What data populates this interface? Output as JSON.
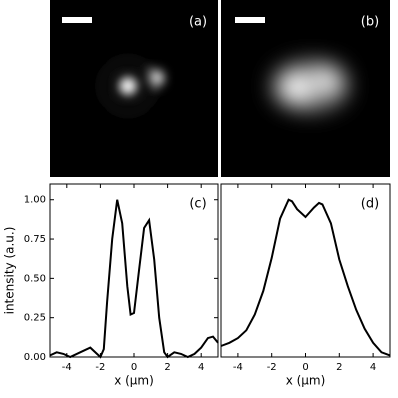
{
  "chart_data": [
    {
      "type": "image",
      "title": "(a)"
    },
    {
      "type": "image",
      "title": "(b)"
    },
    {
      "type": "line",
      "title": "(c)",
      "xlabel": "x (μm)",
      "ylabel": "intensity (a.u.)",
      "color": "#000000",
      "x": [
        -5,
        -4.6,
        -4.2,
        -3.8,
        -3.2,
        -2.6,
        -2.2,
        -2.0,
        -1.8,
        -1.6,
        -1.3,
        -1.0,
        -0.7,
        -0.4,
        -0.2,
        0,
        0.3,
        0.6,
        0.9,
        1.2,
        1.5,
        1.8,
        2.0,
        2.4,
        2.8,
        3.2,
        3.6,
        4.0,
        4.4,
        4.7,
        5.0
      ],
      "values": [
        0.01,
        0.03,
        0.02,
        0.0,
        0.03,
        0.06,
        0.02,
        0.0,
        0.05,
        0.35,
        0.75,
        1.0,
        0.85,
        0.45,
        0.27,
        0.28,
        0.55,
        0.82,
        0.87,
        0.62,
        0.25,
        0.03,
        0.0,
        0.03,
        0.02,
        0.0,
        0.02,
        0.06,
        0.12,
        0.13,
        0.09
      ],
      "xlim": [
        -5,
        5
      ],
      "xticks": [
        -4,
        -2,
        0,
        2,
        4
      ],
      "ylim": [
        0,
        1.1
      ],
      "yticks": [
        {
          "value": 0,
          "label": "0.00"
        },
        {
          "value": 0.25,
          "label": "0.25"
        },
        {
          "value": 0.5,
          "label": "0.50"
        },
        {
          "value": 0.75,
          "label": "0.75"
        },
        {
          "value": 1,
          "label": "1.00"
        }
      ]
    },
    {
      "type": "line",
      "title": "(d)",
      "xlabel": "x (μm)",
      "color": "#000000",
      "x": [
        -5,
        -4.5,
        -4,
        -3.5,
        -3,
        -2.5,
        -2,
        -1.5,
        -1,
        -0.8,
        -0.5,
        0,
        0.5,
        0.8,
        1,
        1.5,
        2,
        2.5,
        3,
        3.5,
        4,
        4.5,
        5
      ],
      "values": [
        0.07,
        0.09,
        0.12,
        0.17,
        0.27,
        0.42,
        0.63,
        0.88,
        1.0,
        0.99,
        0.94,
        0.89,
        0.95,
        0.98,
        0.97,
        0.85,
        0.62,
        0.45,
        0.3,
        0.18,
        0.09,
        0.03,
        0.01
      ],
      "xlim": [
        -5,
        5
      ],
      "xticks": [
        -4,
        -2,
        0,
        2,
        4
      ],
      "ylim": [
        0,
        1.1
      ]
    }
  ]
}
